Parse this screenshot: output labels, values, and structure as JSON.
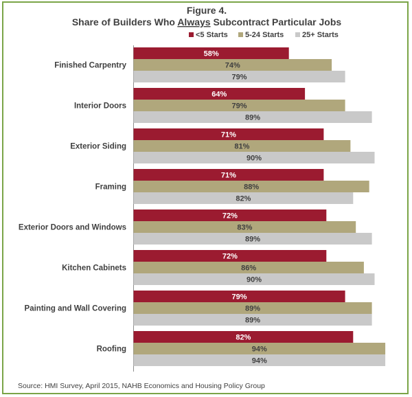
{
  "chart_data": {
    "type": "bar",
    "orientation": "horizontal",
    "title_line1": "Figure 4.",
    "title_line2_before": "Share of Builders Who ",
    "title_line2_emph": "Always",
    "title_line2_after": " Subcontract Particular Jobs",
    "categories": [
      "Finished Carpentry",
      "Interior Doors",
      "Exterior Siding",
      "Framing",
      "Exterior Doors and Windows",
      "Kitchen Cabinets",
      "Painting and Wall Covering",
      "Roofing"
    ],
    "series": [
      {
        "name": "<5 Starts",
        "color": "#9b1b30",
        "label_color": "#ffffff",
        "values": [
          58,
          64,
          71,
          71,
          72,
          72,
          79,
          82
        ]
      },
      {
        "name": "5-24 Starts",
        "color": "#b0a77c",
        "label_color": "#404040",
        "values": [
          74,
          79,
          81,
          88,
          83,
          86,
          89,
          94
        ]
      },
      {
        "name": "25+ Starts",
        "color": "#c9c9c9",
        "label_color": "#404040",
        "values": [
          79,
          89,
          90,
          82,
          89,
          90,
          89,
          94
        ]
      }
    ],
    "value_suffix": "%",
    "legend_position": "top-right",
    "grid": false,
    "source": "Source: HMI Survey,  April 2015,  NAHB Economics and Housing Policy Group"
  }
}
